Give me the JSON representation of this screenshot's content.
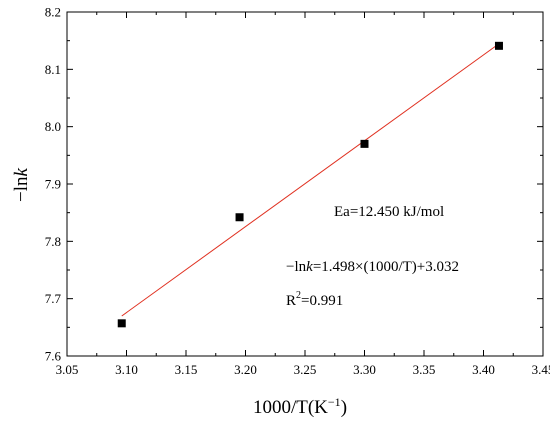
{
  "chart_data": {
    "type": "scatter",
    "title": "",
    "xlabel": "1000/T(K",
    "xlabel_sup": "−1",
    "xlabel_close": ")",
    "ylabel_prefix": "−ln",
    "ylabel_var": "k",
    "xlim": [
      3.05,
      3.45
    ],
    "ylim": [
      7.6,
      8.2
    ],
    "xticks": [
      "3.05",
      "3.10",
      "3.15",
      "3.20",
      "3.25",
      "3.30",
      "3.35",
      "3.40",
      "3.45"
    ],
    "yticks": [
      "7.6",
      "7.7",
      "7.8",
      "7.9",
      "8.0",
      "8.1",
      "8.2"
    ],
    "x": [
      3.096,
      3.195,
      3.3,
      3.413
    ],
    "y": [
      7.657,
      7.842,
      7.97,
      8.141
    ],
    "fit": {
      "slope": 1.498,
      "intercept": 3.032,
      "x_range": [
        3.096,
        3.413
      ],
      "color": "#e03020"
    },
    "marker_color": "#000000",
    "grid": false,
    "annotations": {
      "ea": "Ea=12.450 kJ/mol",
      "eq_prefix": "−ln",
      "eq_var": "k",
      "eq_rest": "=1.498×(1000/T)+3.032",
      "r2_base": "R",
      "r2_sup": "2",
      "r2_rest": "=0.991"
    }
  }
}
